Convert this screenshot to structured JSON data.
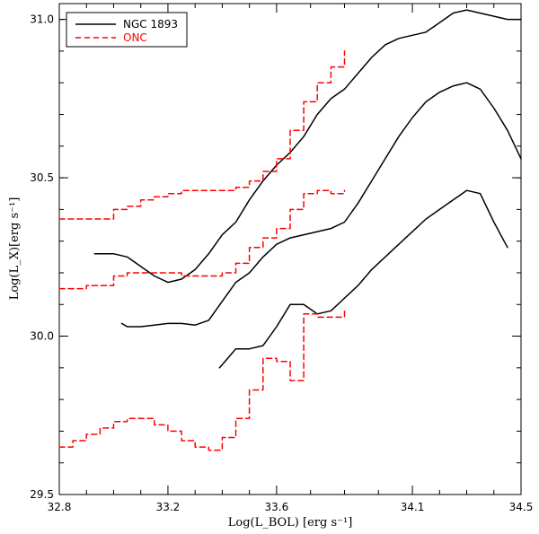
{
  "chart_data": {
    "type": "line",
    "title": "",
    "xlabel": "Log(L_BOL) [erg s⁻¹]",
    "ylabel": "Log(L_X)[erg s⁻¹]",
    "xlim": [
      32.8,
      34.5
    ],
    "ylim": [
      29.5,
      31.05
    ],
    "x_ticks": [
      {
        "value": 32.8,
        "label": "32.8"
      },
      {
        "value": 33.2,
        "label": "33.2"
      },
      {
        "value": 33.6,
        "label": "33.6"
      },
      {
        "value": 34.1,
        "label": "34.1"
      },
      {
        "value": 34.5,
        "label": "34.5"
      }
    ],
    "y_ticks": [
      {
        "value": 29.5,
        "label": "29.5"
      },
      {
        "value": 30.0,
        "label": "30.0"
      },
      {
        "value": 30.5,
        "label": "30.5"
      },
      {
        "value": 31.0,
        "label": "31.0"
      }
    ],
    "legend": {
      "position": "top-left",
      "entries": [
        {
          "name": "NGC 1893",
          "style": "solid",
          "color": "#000000"
        },
        {
          "name": "ONC",
          "style": "dashed",
          "color": "#ff0000"
        }
      ]
    },
    "series": [
      {
        "name": "NGC 1893 upper",
        "style": "solid",
        "color": "#000000",
        "step": false,
        "x": [
          32.93,
          33.0,
          33.05,
          33.1,
          33.15,
          33.2,
          33.25,
          33.3,
          33.35,
          33.4,
          33.45,
          33.5,
          33.55,
          33.6,
          33.65,
          33.7,
          33.75,
          33.8,
          33.85,
          33.9,
          33.95,
          34.0,
          34.05,
          34.1,
          34.15,
          34.2,
          34.25,
          34.3,
          34.35,
          34.4,
          34.45,
          34.5
        ],
        "y": [
          30.26,
          30.26,
          30.25,
          30.22,
          30.19,
          30.17,
          30.18,
          30.21,
          30.26,
          30.32,
          30.36,
          30.43,
          30.49,
          30.54,
          30.58,
          30.63,
          30.7,
          30.75,
          30.78,
          30.83,
          30.88,
          30.92,
          30.94,
          30.95,
          30.96,
          30.99,
          31.02,
          31.03,
          31.02,
          31.01,
          31.0,
          31.0
        ]
      },
      {
        "name": "NGC 1893 middle",
        "style": "solid",
        "color": "#000000",
        "step": false,
        "x": [
          33.03,
          33.05,
          33.1,
          33.15,
          33.2,
          33.25,
          33.3,
          33.35,
          33.4,
          33.45,
          33.5,
          33.55,
          33.6,
          33.65,
          33.7,
          33.75,
          33.8,
          33.85,
          33.9,
          33.95,
          34.0,
          34.05,
          34.1,
          34.15,
          34.2,
          34.25,
          34.3,
          34.35,
          34.4,
          34.45,
          34.5
        ],
        "y": [
          30.04,
          30.03,
          30.03,
          30.035,
          30.04,
          30.04,
          30.035,
          30.05,
          30.11,
          30.17,
          30.2,
          30.25,
          30.29,
          30.31,
          30.32,
          30.33,
          30.34,
          30.36,
          30.42,
          30.49,
          30.56,
          30.63,
          30.69,
          30.74,
          30.77,
          30.79,
          30.8,
          30.78,
          30.72,
          30.65,
          30.56
        ]
      },
      {
        "name": "NGC 1893 lower",
        "style": "solid",
        "color": "#000000",
        "step": false,
        "x": [
          33.39,
          33.42,
          33.45,
          33.5,
          33.55,
          33.6,
          33.65,
          33.7,
          33.75,
          33.8,
          33.85,
          33.9,
          33.95,
          34.0,
          34.05,
          34.1,
          34.15,
          34.2,
          34.25,
          34.3,
          34.35,
          34.4,
          34.45
        ],
        "y": [
          29.9,
          29.93,
          29.96,
          29.96,
          29.97,
          30.03,
          30.1,
          30.1,
          30.07,
          30.08,
          30.12,
          30.16,
          30.21,
          30.25,
          30.29,
          30.33,
          30.37,
          30.4,
          30.43,
          30.46,
          30.45,
          30.36,
          30.28
        ]
      },
      {
        "name": "ONC upper",
        "style": "dashed",
        "color": "#ff0000",
        "step": true,
        "x": [
          32.8,
          32.9,
          33.0,
          33.05,
          33.1,
          33.15,
          33.2,
          33.25,
          33.3,
          33.35,
          33.4,
          33.45,
          33.5,
          33.55,
          33.6,
          33.65,
          33.7,
          33.75,
          33.8,
          33.85
        ],
        "y": [
          30.37,
          30.37,
          30.4,
          30.41,
          30.43,
          30.44,
          30.45,
          30.46,
          30.46,
          30.46,
          30.46,
          30.47,
          30.49,
          30.52,
          30.56,
          30.65,
          30.74,
          30.8,
          30.85,
          30.9
        ]
      },
      {
        "name": "ONC middle",
        "style": "dashed",
        "color": "#ff0000",
        "step": true,
        "x": [
          32.8,
          32.9,
          33.0,
          33.05,
          33.1,
          33.15,
          33.2,
          33.25,
          33.3,
          33.35,
          33.4,
          33.45,
          33.5,
          33.55,
          33.6,
          33.65,
          33.7,
          33.75,
          33.8,
          33.85
        ],
        "y": [
          30.15,
          30.16,
          30.19,
          30.2,
          30.2,
          30.2,
          30.2,
          30.19,
          30.19,
          30.19,
          30.2,
          30.23,
          30.28,
          30.31,
          30.34,
          30.4,
          30.45,
          30.46,
          30.45,
          30.46
        ]
      },
      {
        "name": "ONC lower",
        "style": "dashed",
        "color": "#ff0000",
        "step": true,
        "x": [
          32.8,
          32.85,
          32.9,
          32.95,
          33.0,
          33.05,
          33.1,
          33.15,
          33.2,
          33.25,
          33.3,
          33.35,
          33.4,
          33.45,
          33.5,
          33.55,
          33.6,
          33.65,
          33.7,
          33.75,
          33.8,
          33.85
        ],
        "y": [
          29.65,
          29.67,
          29.69,
          29.71,
          29.73,
          29.74,
          29.74,
          29.72,
          29.7,
          29.67,
          29.65,
          29.64,
          29.68,
          29.74,
          29.83,
          29.93,
          29.92,
          29.86,
          30.07,
          30.06,
          30.06,
          30.08
        ]
      }
    ]
  }
}
